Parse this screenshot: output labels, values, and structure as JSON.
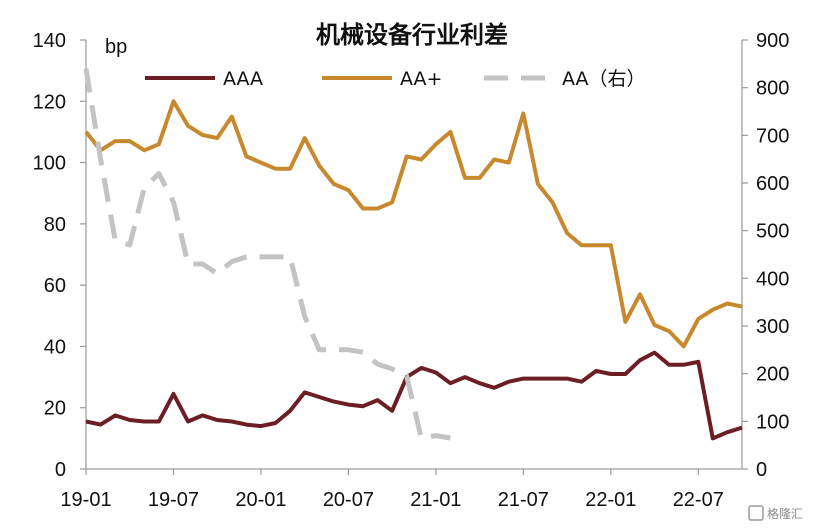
{
  "chart_data": {
    "type": "line",
    "title": "机械设备行业利差",
    "y_left_unit": "bp",
    "y_left_range": [
      0,
      140
    ],
    "y_left_ticks": [
      0,
      20,
      40,
      60,
      80,
      100,
      120,
      140
    ],
    "y_right_range": [
      0,
      900
    ],
    "y_right_ticks": [
      0,
      100,
      200,
      300,
      400,
      500,
      600,
      700,
      800,
      900
    ],
    "x_range": [
      0,
      45
    ],
    "x_ticks": [
      {
        "i": 0,
        "label": "19-01"
      },
      {
        "i": 6,
        "label": "19-07"
      },
      {
        "i": 12,
        "label": "20-01"
      },
      {
        "i": 18,
        "label": "20-07"
      },
      {
        "i": 24,
        "label": "21-01"
      },
      {
        "i": 30,
        "label": "21-07"
      },
      {
        "i": 36,
        "label": "22-01"
      },
      {
        "i": 42,
        "label": "22-07"
      }
    ],
    "series": [
      {
        "name": "AAA",
        "axis": "left",
        "color": "#6b1f24",
        "dash": false,
        "values": [
          15.5,
          14.5,
          17.5,
          16,
          15.5,
          15.5,
          24.5,
          15.5,
          17.5,
          16,
          15.5,
          14.5,
          14,
          15,
          19,
          25,
          23.5,
          22,
          21,
          20.5,
          22.5,
          19,
          30,
          33,
          31.5,
          28,
          30,
          28,
          26.5,
          28.5,
          29.5,
          29.5,
          29.5,
          29.5,
          28.5,
          32,
          31,
          31,
          35.5,
          38,
          34,
          34,
          35,
          10,
          12,
          13.5
        ]
      },
      {
        "name": "AA+",
        "axis": "left",
        "color": "#c8892e",
        "dash": false,
        "values": [
          110,
          104,
          107,
          107,
          104,
          106,
          120,
          112,
          109,
          108,
          115,
          102,
          100,
          98,
          98,
          108,
          99,
          93,
          91,
          85,
          85,
          87,
          102,
          101,
          106,
          110,
          95,
          95,
          101,
          100,
          116,
          93,
          87,
          77,
          73,
          73,
          73,
          48,
          57,
          47,
          45,
          40,
          49,
          52,
          54,
          53
        ]
      },
      {
        "name": "AA（右）",
        "axis": "right",
        "color": "#c3c3c3",
        "dash": true,
        "values": [
          840,
          650,
          480,
          470,
          590,
          620,
          560,
          430,
          430,
          410,
          435,
          445,
          445,
          445,
          445,
          320,
          250,
          250,
          250,
          245,
          220,
          210,
          195,
          65,
          70,
          65
        ]
      }
    ]
  },
  "watermark": "格隆汇"
}
